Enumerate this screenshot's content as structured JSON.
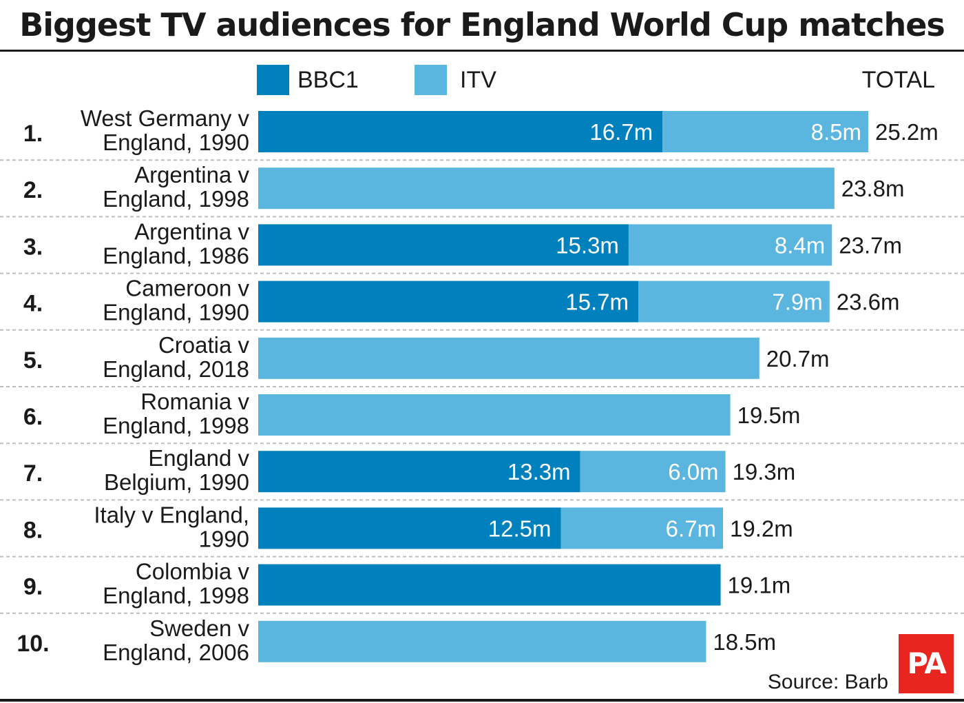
{
  "title": "Biggest TV audiences for England World Cup matches",
  "legend": {
    "bbc1_label": "BBC1",
    "itv_label": "ITV",
    "total_label": "TOTAL"
  },
  "colors": {
    "bbc1": "#0081bd",
    "itv": "#5ab6df",
    "divider": "#bdbdbd",
    "text": "#1a1a1a",
    "logo": "#e8251f"
  },
  "source": "Source: Barb",
  "logo_text": "PA",
  "chart_data": {
    "type": "bar",
    "orientation": "horizontal",
    "stacked": true,
    "unit": "m",
    "xlim": [
      0,
      25.2
    ],
    "legend_position": "top",
    "grid": false,
    "rows": [
      {
        "rank": "1.",
        "label": [
          "West Germany v",
          "England, 1990"
        ],
        "bbc1": 16.7,
        "itv": 8.5,
        "bbc1_label": "16.7m",
        "itv_label": "8.5m",
        "total": 25.2,
        "total_label": "25.2m"
      },
      {
        "rank": "2.",
        "label": [
          "Argentina v",
          "England, 1998"
        ],
        "bbc1": 0,
        "itv": 23.8,
        "bbc1_label": "",
        "itv_label": "",
        "total": 23.8,
        "total_label": "23.8m"
      },
      {
        "rank": "3.",
        "label": [
          "Argentina v",
          "England, 1986"
        ],
        "bbc1": 15.3,
        "itv": 8.4,
        "bbc1_label": "15.3m",
        "itv_label": "8.4m",
        "total": 23.7,
        "total_label": "23.7m"
      },
      {
        "rank": "4.",
        "label": [
          "Cameroon v",
          "England, 1990"
        ],
        "bbc1": 15.7,
        "itv": 7.9,
        "bbc1_label": "15.7m",
        "itv_label": "7.9m",
        "total": 23.6,
        "total_label": "23.6m"
      },
      {
        "rank": "5.",
        "label": [
          "Croatia v",
          "England, 2018"
        ],
        "bbc1": 0,
        "itv": 20.7,
        "bbc1_label": "",
        "itv_label": "",
        "total": 20.7,
        "total_label": "20.7m"
      },
      {
        "rank": "6.",
        "label": [
          "Romania v",
          "England, 1998"
        ],
        "bbc1": 0,
        "itv": 19.5,
        "bbc1_label": "",
        "itv_label": "",
        "total": 19.5,
        "total_label": "19.5m"
      },
      {
        "rank": "7.",
        "label": [
          "England v",
          "Belgium, 1990"
        ],
        "bbc1": 13.3,
        "itv": 6.0,
        "bbc1_label": "13.3m",
        "itv_label": "6.0m",
        "total": 19.3,
        "total_label": "19.3m"
      },
      {
        "rank": "8.",
        "label": [
          "Italy v England,",
          "1990"
        ],
        "bbc1": 12.5,
        "itv": 6.7,
        "bbc1_label": "12.5m",
        "itv_label": "6.7m",
        "total": 19.2,
        "total_label": "19.2m"
      },
      {
        "rank": "9.",
        "label": [
          "Colombia v",
          "England, 1998"
        ],
        "bbc1": 19.1,
        "itv": 0,
        "bbc1_label": "",
        "itv_label": "",
        "total": 19.1,
        "total_label": "19.1m"
      },
      {
        "rank": "10.",
        "label": [
          "Sweden v",
          "England, 2006"
        ],
        "bbc1": 0,
        "itv": 18.5,
        "bbc1_label": "",
        "itv_label": "",
        "total": 18.5,
        "total_label": "18.5m"
      }
    ]
  }
}
